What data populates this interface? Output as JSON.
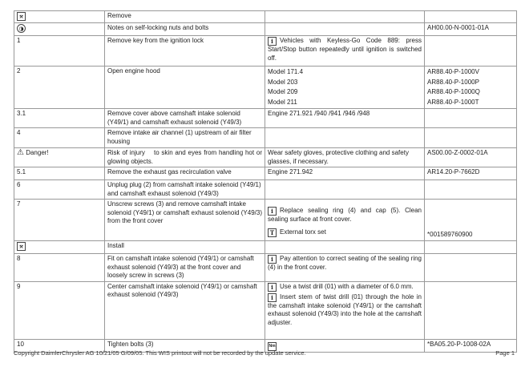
{
  "rows": [
    {
      "step_icon": "remove-icon",
      "text": "Remove",
      "note": "",
      "ref": ""
    },
    {
      "step_icon": "notes-icon",
      "text": "Notes on self-locking nuts and bolts",
      "note": "",
      "ref": "AH00.00-N-0001-01A"
    },
    {
      "step": "1",
      "text": "Remove key from the ignition lock",
      "note": "Vehicles with Keyless-Go Code 889: press Start/Stop button repeatedly until ignition is switched off.",
      "ref": ""
    },
    {
      "step": "2",
      "text": "Open engine hood",
      "models": [
        "Model 171.4",
        "Model 203",
        "Model 209",
        "Model 211"
      ],
      "refs": [
        "AR88.40-P-1000V",
        "AR88.40-P-1000P",
        "AR88.40-P-1000Q",
        "AR88.40-P-1000T"
      ]
    },
    {
      "step": "3.1",
      "text": "Remove cover above camshaft intake solenoid (Y49/1) and camshaft exhaust solenoid (Y49/3)",
      "note": "Engine 271.921 /940 /941 /946 /948",
      "ref": ""
    },
    {
      "step": "4",
      "text": "Remove intake air channel (1) upstream of air filter housing",
      "note": "",
      "ref": ""
    },
    {
      "step": "Danger!",
      "text": "Risk of injury    to skin and eyes from handling hot or glowing objects.",
      "note": "Wear safety gloves, protective clothing and safety glasses, if necessary.",
      "ref": "AS00.00-Z-0002-01A"
    },
    {
      "step": "5.1",
      "text": "Remove the exhaust gas recirculation valve",
      "note": "Engine 271.942",
      "ref": "AR14.20-P-7662D"
    },
    {
      "step": "6",
      "text": "Unplug plug (2) from camshaft intake solenoid (Y49/1) and camshaft exhaust solenoid (Y49/3)",
      "note": "",
      "ref": ""
    },
    {
      "step": "7",
      "text": "Unscrew screws (3) and remove camshaft intake solenoid (Y49/1) or camshaft exhaust solenoid (Y49/3) from the front cover",
      "note": "Replace sealing ring (4) and cap (5). Clean sealing surface at front cover.",
      "tool": "External torx set",
      "ref": "*001589760900"
    },
    {
      "step_icon": "install-icon",
      "text": "Install",
      "note": "",
      "ref": ""
    },
    {
      "step": "8",
      "text": "Fit on camshaft intake solenoid (Y49/1) or camshaft exhaust solenoid (Y49/3) at the front cover and loosely screw in screws (3)",
      "note": "Pay attention to correct seating of the sealing ring (4) in the front cover.",
      "ref": ""
    },
    {
      "step": "9",
      "text": "Center camshaft intake solenoid (Y49/1) or camshaft exhaust solenoid (Y49/3)",
      "note": "Use a twist drill (01) with a diameter of 6.0 mm.",
      "note2": "Insert stem of twist drill (01) through the hole in the camshaft intake solenoid (Y49/1) or the camshaft exhaust solenoid (Y49/3) into the hole at the camshaft adjuster.",
      "ref": ""
    },
    {
      "step": "10",
      "text": "Tighten bolts (3)",
      "note_icon": "torque-icon",
      "note_icon_text": "Nm",
      "ref": "*BA05.20-P-1008-02A"
    }
  ],
  "icons": {
    "info": "i",
    "tool": "T"
  },
  "footer": {
    "copyright": "Copyright DaimlerChrysler AG 10/21/05 G/09/05. This WIS printout will not be recorded by the update service.",
    "page": "Page 1"
  }
}
